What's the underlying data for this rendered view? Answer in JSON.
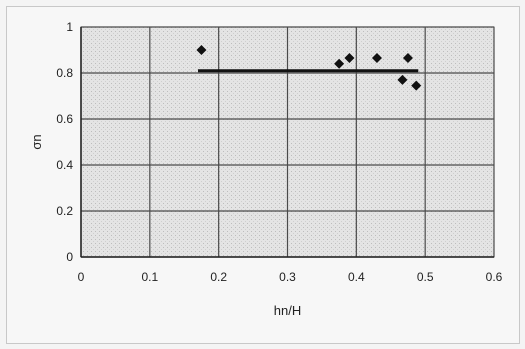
{
  "chart_data": {
    "type": "scatter",
    "title": "",
    "xlabel": "hn/H",
    "ylabel": "σn",
    "xlim": [
      0,
      0.6
    ],
    "ylim": [
      0,
      1
    ],
    "xticks": [
      "0",
      "0.1",
      "0.2",
      "0.3",
      "0.4",
      "0.5",
      "0.6"
    ],
    "yticks": [
      "0",
      "0.2",
      "0.4",
      "0.6",
      "0.8",
      "1"
    ],
    "grid": true,
    "legend": "none",
    "series": [
      {
        "type": "scatter",
        "marker": "diamond",
        "x": [
          0.175,
          0.375,
          0.39,
          0.43,
          0.467,
          0.475,
          0.487
        ],
        "y": [
          0.9,
          0.84,
          0.865,
          0.865,
          0.77,
          0.865,
          0.745
        ]
      },
      {
        "type": "line",
        "x": [
          0.17,
          0.49
        ],
        "y": [
          0.81,
          0.81
        ]
      }
    ],
    "colors": {
      "plot_bg": "#e4e4e4",
      "grid": "#4a4a4a",
      "marker": "#111111",
      "line": "#111111"
    }
  }
}
